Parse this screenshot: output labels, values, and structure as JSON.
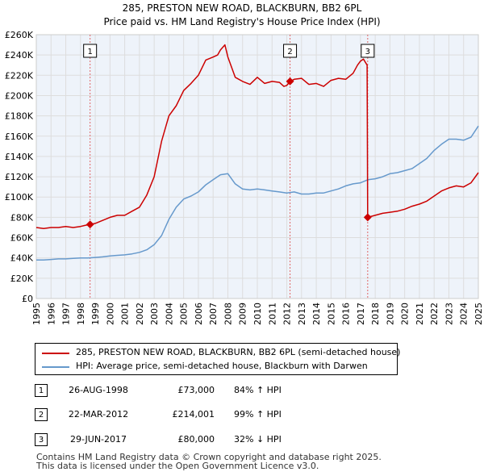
{
  "colors": {
    "price_line": "#cc0000",
    "hpi_line": "#6699cc",
    "grid": "#dddddd",
    "plot_bg": "#eef3fa",
    "marker_line": "#e06666"
  },
  "chart_data": {
    "type": "line",
    "title": "285, PRESTON NEW ROAD, BLACKBURN, BB2 6PL",
    "subtitle": "Price paid vs. HM Land Registry's House Price Index (HPI)",
    "xlabel": "",
    "ylabel": "",
    "xlim": [
      1995,
      2025
    ],
    "ylim": [
      0,
      260000
    ],
    "grid": true,
    "x_ticks": [
      "1995",
      "1996",
      "1997",
      "1998",
      "1999",
      "2000",
      "2001",
      "2002",
      "2003",
      "2004",
      "2005",
      "2006",
      "2007",
      "2008",
      "2009",
      "2010",
      "2011",
      "2012",
      "2013",
      "2014",
      "2015",
      "2016",
      "2017",
      "2018",
      "2019",
      "2020",
      "2021",
      "2022",
      "2023",
      "2024",
      "2025"
    ],
    "y_ticks": [
      {
        "value": 0,
        "label": "£0"
      },
      {
        "value": 20000,
        "label": "£20K"
      },
      {
        "value": 40000,
        "label": "£40K"
      },
      {
        "value": 60000,
        "label": "£60K"
      },
      {
        "value": 80000,
        "label": "£80K"
      },
      {
        "value": 100000,
        "label": "£100K"
      },
      {
        "value": 120000,
        "label": "£120K"
      },
      {
        "value": 140000,
        "label": "£140K"
      },
      {
        "value": 160000,
        "label": "£160K"
      },
      {
        "value": 180000,
        "label": "£180K"
      },
      {
        "value": 200000,
        "label": "£200K"
      },
      {
        "value": 220000,
        "label": "£220K"
      },
      {
        "value": 240000,
        "label": "£240K"
      },
      {
        "value": 260000,
        "label": "£260K"
      }
    ],
    "series": [
      {
        "name": "285, PRESTON NEW ROAD, BLACKBURN, BB2 6PL (semi-detached house)",
        "color": "#cc0000",
        "x": [
          1995.0,
          1995.5,
          1996.0,
          1996.5,
          1997.0,
          1997.5,
          1998.0,
          1998.3,
          1998.65,
          1999.0,
          1999.5,
          2000.0,
          2000.5,
          2001.0,
          2001.5,
          2002.0,
          2002.5,
          2003.0,
          2003.5,
          2004.0,
          2004.5,
          2005.0,
          2005.5,
          2006.0,
          2006.5,
          2007.0,
          2007.3,
          2007.5,
          2007.8,
          2008.0,
          2008.5,
          2009.0,
          2009.5,
          2010.0,
          2010.5,
          2011.0,
          2011.5,
          2011.8,
          2012.0,
          2012.22,
          2012.5,
          2013.0,
          2013.5,
          2014.0,
          2014.5,
          2015.0,
          2015.5,
          2016.0,
          2016.5,
          2016.8,
          2017.0,
          2017.2,
          2017.45,
          2017.49,
          2018.0,
          2018.5,
          2019.0,
          2019.5,
          2020.0,
          2020.5,
          2021.0,
          2021.5,
          2022.0,
          2022.5,
          2023.0,
          2023.5,
          2024.0,
          2024.5,
          2025.0
        ],
        "values": [
          70000,
          69000,
          70000,
          70000,
          71000,
          70000,
          71000,
          72000,
          73000,
          74000,
          77000,
          80000,
          82000,
          82000,
          86000,
          90000,
          102000,
          120000,
          155000,
          180000,
          190000,
          205000,
          212000,
          220000,
          235000,
          238000,
          240000,
          245000,
          250000,
          238000,
          218000,
          214000,
          211000,
          218000,
          212000,
          214000,
          213000,
          209000,
          210000,
          214001,
          216000,
          217000,
          211000,
          212000,
          209000,
          215000,
          217000,
          216000,
          222000,
          230000,
          234000,
          236000,
          230000,
          80000,
          82000,
          84000,
          85000,
          86000,
          88000,
          91000,
          93000,
          96000,
          101000,
          106000,
          109000,
          111000,
          110000,
          114000,
          124000
        ]
      },
      {
        "name": "HPI: Average price, semi-detached house, Blackburn with Darwen",
        "color": "#6699cc",
        "x": [
          1995.0,
          1995.5,
          1996.0,
          1996.5,
          1997.0,
          1997.5,
          1998.0,
          1998.5,
          1999.0,
          1999.5,
          2000.0,
          2000.5,
          2001.0,
          2001.5,
          2002.0,
          2002.5,
          2003.0,
          2003.5,
          2004.0,
          2004.5,
          2005.0,
          2005.5,
          2006.0,
          2006.5,
          2007.0,
          2007.5,
          2008.0,
          2008.5,
          2009.0,
          2009.5,
          2010.0,
          2010.5,
          2011.0,
          2011.5,
          2012.0,
          2012.5,
          2013.0,
          2013.5,
          2014.0,
          2014.5,
          2015.0,
          2015.5,
          2016.0,
          2016.5,
          2017.0,
          2017.5,
          2018.0,
          2018.5,
          2019.0,
          2019.5,
          2020.0,
          2020.5,
          2021.0,
          2021.5,
          2022.0,
          2022.5,
          2023.0,
          2023.5,
          2024.0,
          2024.5,
          2025.0
        ],
        "values": [
          38000,
          38000,
          38500,
          39000,
          39000,
          39500,
          40000,
          40000,
          40500,
          41000,
          42000,
          42500,
          43000,
          44000,
          45500,
          48000,
          53000,
          62000,
          78000,
          90000,
          98000,
          101000,
          105000,
          112000,
          117000,
          122000,
          123000,
          113000,
          108000,
          107000,
          108000,
          107000,
          106000,
          105000,
          104000,
          105000,
          103000,
          103000,
          104000,
          104000,
          106000,
          108000,
          111000,
          113000,
          114000,
          117000,
          118000,
          120000,
          123000,
          124000,
          126000,
          128000,
          133000,
          138000,
          146000,
          152000,
          157000,
          157000,
          156000,
          159000,
          170000
        ]
      }
    ],
    "annotations": [
      {
        "label": "1",
        "x": 1998.65,
        "price": 73000
      },
      {
        "label": "2",
        "x": 2012.22,
        "price": 214001
      },
      {
        "label": "3",
        "x": 2017.49,
        "price": 80000
      }
    ],
    "legend_position": "bottom"
  },
  "legend": {
    "price_label": "285, PRESTON NEW ROAD, BLACKBURN, BB2 6PL (semi-detached house)",
    "hpi_label": "HPI: Average price, semi-detached house, Blackburn with Darwen"
  },
  "sales": [
    {
      "num": "1",
      "date": "26-AUG-1998",
      "price": "£73,000",
      "hpi": "84% ↑ HPI"
    },
    {
      "num": "2",
      "date": "22-MAR-2012",
      "price": "£214,001",
      "hpi": "99% ↑ HPI"
    },
    {
      "num": "3",
      "date": "29-JUN-2017",
      "price": "£80,000",
      "hpi": "32% ↓ HPI"
    }
  ],
  "footer": {
    "line1": "Contains HM Land Registry data © Crown copyright and database right 2025.",
    "line2": "This data is licensed under the Open Government Licence v3.0."
  }
}
